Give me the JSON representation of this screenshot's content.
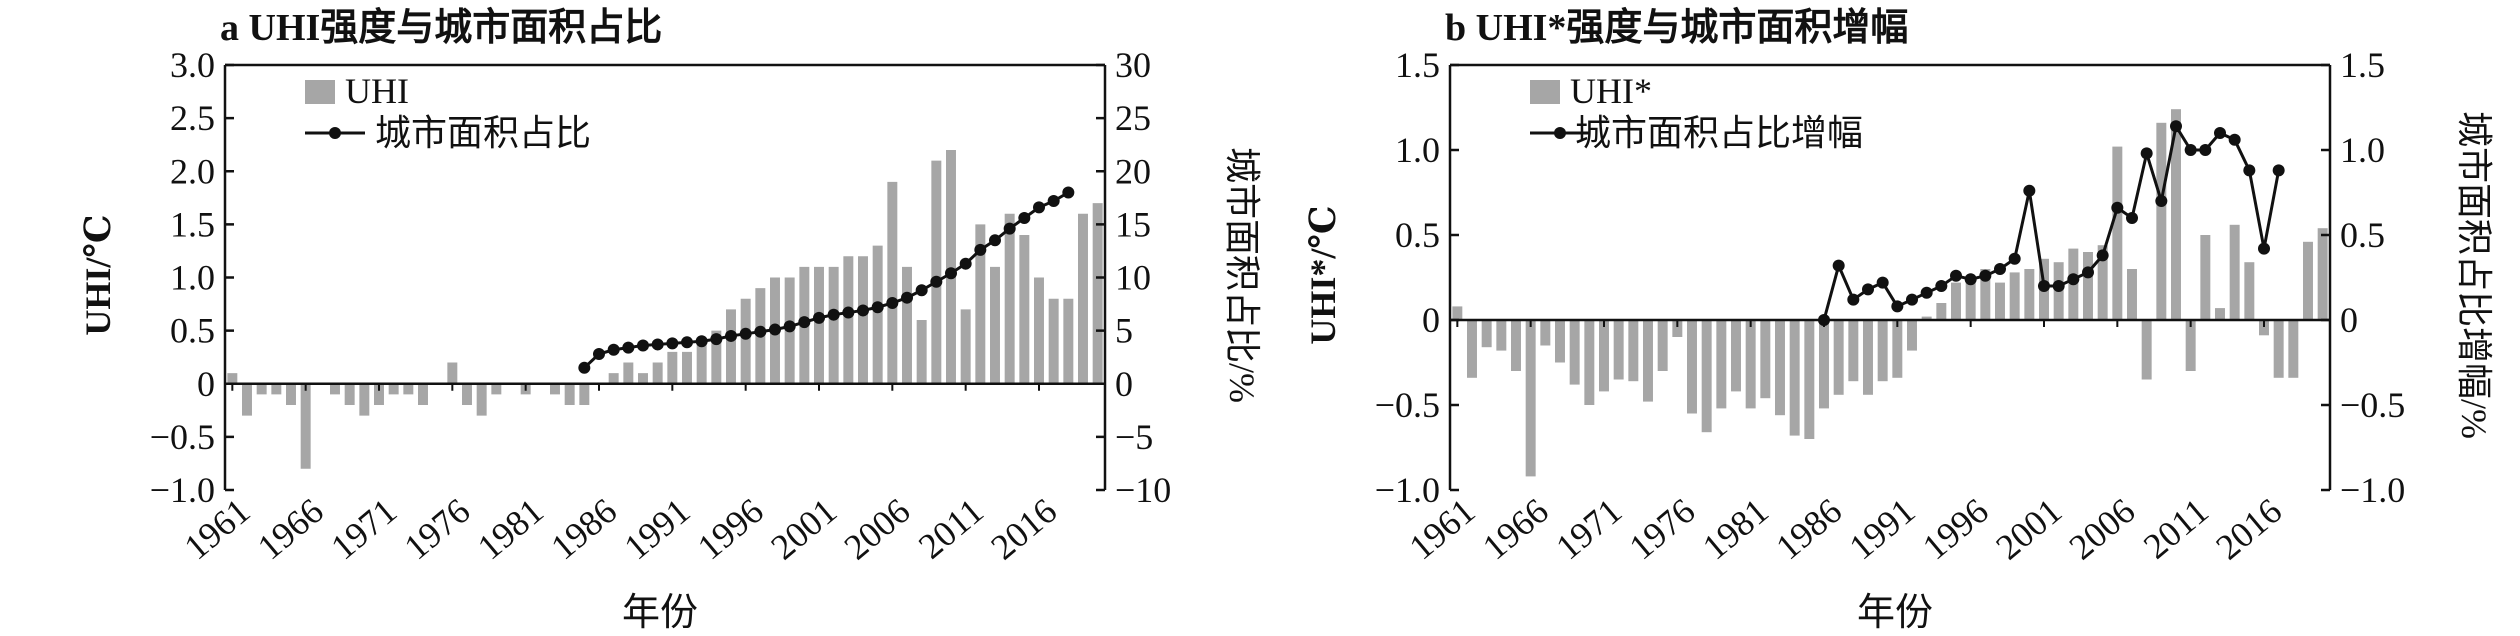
{
  "chart_data": [
    {
      "type": "bar+line",
      "title": "a UHI强度与城市面积占比",
      "xlabel": "年份",
      "ylabel": "UHI/℃",
      "y2label": "城市面积占比/%",
      "ylim": [
        -1.0,
        3.0
      ],
      "y2lim": [
        -10,
        30
      ],
      "yticks": [
        -1.0,
        -0.5,
        0,
        0.5,
        1.0,
        1.5,
        2.0,
        2.5,
        3.0
      ],
      "yticklabels": [
        "−1.0",
        "−0.5",
        "0",
        "0.5",
        "1.0",
        "1.5",
        "2.0",
        "2.5",
        "3.0"
      ],
      "y2ticks": [
        -10,
        -5,
        0,
        5,
        10,
        15,
        20,
        25,
        30
      ],
      "y2ticklabels": [
        "−10",
        "−5",
        "0",
        "5",
        "10",
        "15",
        "20",
        "25",
        "30"
      ],
      "xticks": [
        "1961",
        "1966",
        "1971",
        "1976",
        "1981",
        "1986",
        "1991",
        "1996",
        "2001",
        "2006",
        "2011",
        "2016"
      ],
      "legend": [
        "UHI",
        "城市面积占比"
      ],
      "legend_position": "top-left",
      "bar_color": "#a6a6a6",
      "line_color": "#111111",
      "years": [
        1961,
        1962,
        1963,
        1964,
        1965,
        1966,
        1967,
        1968,
        1969,
        1970,
        1971,
        1972,
        1973,
        1974,
        1975,
        1976,
        1977,
        1978,
        1979,
        1980,
        1981,
        1982,
        1983,
        1984,
        1985,
        1986,
        1987,
        1988,
        1989,
        1990,
        1991,
        1992,
        1993,
        1994,
        1995,
        1996,
        1997,
        1998,
        1999,
        2000,
        2001,
        2002,
        2003,
        2004,
        2005,
        2006,
        2007,
        2008,
        2009,
        2010,
        2011,
        2012,
        2013,
        2014,
        2015,
        2016,
        2017,
        2018,
        2019,
        2020
      ],
      "bar_values": [
        0.1,
        -0.3,
        -0.1,
        -0.1,
        -0.2,
        -0.8,
        0,
        -0.1,
        -0.2,
        -0.3,
        -0.2,
        -0.1,
        -0.1,
        -0.2,
        0,
        0.2,
        -0.2,
        -0.3,
        -0.1,
        0,
        -0.1,
        0,
        -0.1,
        -0.2,
        -0.2,
        0,
        0.1,
        0.2,
        0.1,
        0.2,
        0.3,
        0.3,
        0.4,
        0.5,
        0.7,
        0.8,
        0.9,
        1.0,
        1.0,
        1.1,
        1.1,
        1.1,
        1.2,
        1.2,
        1.3,
        1.9,
        1.1,
        0.6,
        2.1,
        2.2,
        0.7,
        1.5,
        1.1,
        1.6,
        1.4,
        1.0,
        0.8,
        0.8,
        1.6,
        1.7
      ],
      "line_years": [
        1985,
        1986,
        1987,
        1988,
        1989,
        1990,
        1991,
        1992,
        1993,
        1994,
        1995,
        1996,
        1997,
        1998,
        1999,
        2000,
        2001,
        2002,
        2003,
        2004,
        2005,
        2006,
        2007,
        2008,
        2009,
        2010,
        2011,
        2012,
        2013,
        2014,
        2015,
        2016,
        2017,
        2018
      ],
      "line_values": [
        1.5,
        2.8,
        3.2,
        3.4,
        3.6,
        3.7,
        3.8,
        3.9,
        4.0,
        4.2,
        4.5,
        4.7,
        4.9,
        5.1,
        5.4,
        5.8,
        6.2,
        6.5,
        6.7,
        6.9,
        7.2,
        7.6,
        8.1,
        8.8,
        9.6,
        10.4,
        11.3,
        12.6,
        13.5,
        14.6,
        15.6,
        16.6,
        17.2,
        18.0
      ]
    },
    {
      "type": "bar+line",
      "title": "b UHI*强度与城市面积增幅",
      "xlabel": "年份",
      "ylabel": "UHI*/℃",
      "y2label": "城市面积占比增幅/%",
      "ylim": [
        -1.0,
        1.5
      ],
      "y2lim": [
        -1.0,
        1.5
      ],
      "yticks": [
        -1.0,
        -0.5,
        0,
        0.5,
        1.0,
        1.5
      ],
      "yticklabels": [
        "−1.0",
        "−0.5",
        "0",
        "0.5",
        "1.0",
        "1.5"
      ],
      "y2ticks": [
        -1.0,
        -0.5,
        0,
        0.5,
        1.0,
        1.5
      ],
      "y2ticklabels": [
        "−1.0",
        "−0.5",
        "0",
        "0.5",
        "1.0",
        "1.5"
      ],
      "xticks": [
        "1961",
        "1966",
        "1971",
        "1976",
        "1981",
        "1986",
        "1991",
        "1996",
        "2001",
        "2006",
        "2011",
        "2016"
      ],
      "legend": [
        "UHI*",
        "城市面积占比增幅"
      ],
      "legend_position": "top-left",
      "bar_color": "#a6a6a6",
      "line_color": "#111111",
      "years": [
        1961,
        1962,
        1963,
        1964,
        1965,
        1966,
        1967,
        1968,
        1969,
        1970,
        1971,
        1972,
        1973,
        1974,
        1975,
        1976,
        1977,
        1978,
        1979,
        1980,
        1981,
        1982,
        1983,
        1984,
        1985,
        1986,
        1987,
        1988,
        1989,
        1990,
        1991,
        1992,
        1993,
        1994,
        1995,
        1996,
        1997,
        1998,
        1999,
        2000,
        2001,
        2002,
        2003,
        2004,
        2005,
        2006,
        2007,
        2008,
        2009,
        2010,
        2011,
        2012,
        2013,
        2014,
        2015,
        2016,
        2017,
        2018,
        2019,
        2020
      ],
      "bar_values": [
        0.08,
        -0.34,
        -0.16,
        -0.18,
        -0.3,
        -0.92,
        -0.15,
        -0.25,
        -0.38,
        -0.5,
        -0.42,
        -0.35,
        -0.36,
        -0.48,
        -0.3,
        -0.1,
        -0.55,
        -0.66,
        -0.52,
        -0.42,
        -0.52,
        -0.46,
        -0.56,
        -0.68,
        -0.7,
        -0.52,
        -0.44,
        -0.36,
        -0.44,
        -0.36,
        -0.34,
        -0.18,
        0.02,
        0.1,
        0.22,
        0.24,
        0.3,
        0.22,
        0.28,
        0.3,
        0.36,
        0.34,
        0.42,
        0.4,
        0.44,
        1.02,
        0.3,
        -0.35,
        1.16,
        1.24,
        -0.3,
        0.5,
        0.07,
        0.56,
        0.34,
        -0.09,
        -0.34,
        -0.34,
        0.46,
        0.54
      ],
      "line_years": [
        1986,
        1987,
        1988,
        1989,
        1990,
        1991,
        1992,
        1993,
        1994,
        1995,
        1996,
        1997,
        1998,
        1999,
        2000,
        2001,
        2002,
        2003,
        2004,
        2005,
        2006,
        2007,
        2008,
        2009,
        2010,
        2011,
        2012,
        2013,
        2014,
        2015,
        2016,
        2017
      ],
      "line_values": [
        0.0,
        0.32,
        0.12,
        0.18,
        0.22,
        0.08,
        0.12,
        0.16,
        0.2,
        0.26,
        0.24,
        0.26,
        0.3,
        0.36,
        0.76,
        0.2,
        0.2,
        0.24,
        0.28,
        0.38,
        0.66,
        0.6,
        0.98,
        0.7,
        1.14,
        1.0,
        1.0,
        1.1,
        1.06,
        0.88,
        0.42,
        0.88
      ]
    }
  ]
}
